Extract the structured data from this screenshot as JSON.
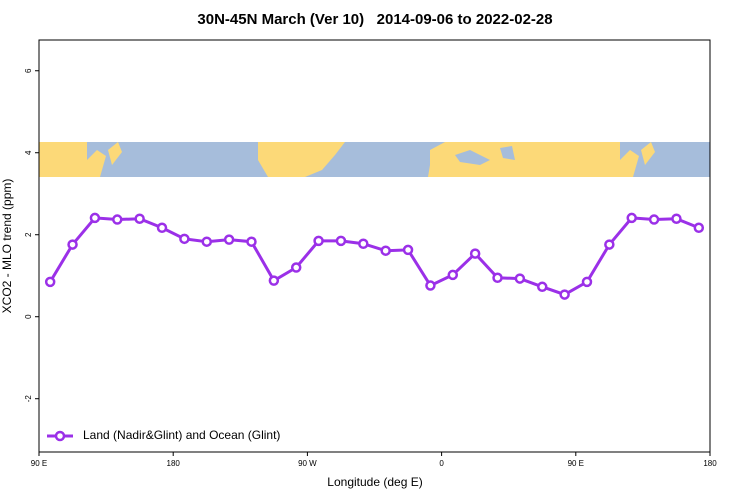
{
  "chart_data": {
    "type": "line",
    "title": "30N-45N March (Ver 10)   2014-09-06 to 2022-02-28",
    "xlabel": "Longitude (deg E)",
    "ylabel": "XCO2 - MLO trend (ppm)",
    "x": [
      97.5,
      112.5,
      127.5,
      142.5,
      157.5,
      172.5,
      187.5,
      202.5,
      217.5,
      232.5,
      247.5,
      262.5,
      277.5,
      292.5,
      307.5,
      322.5,
      337.5,
      352.5,
      367.5,
      382.5,
      397.5,
      412.5,
      427.5,
      442.5,
      457.5,
      472.5,
      487.5,
      502.5,
      517.5,
      532.5
    ],
    "series": [
      {
        "name": "Land (Nadir&Glint) and Ocean (Glint)",
        "color": "#9b30e8",
        "values": [
          0.85,
          1.76,
          2.41,
          2.37,
          2.39,
          2.17,
          1.9,
          1.83,
          1.88,
          1.83,
          0.88,
          1.2,
          1.85,
          1.85,
          1.78,
          1.61,
          1.63,
          0.76,
          1.02,
          1.54,
          0.95,
          0.93,
          0.73,
          0.54,
          0.85,
          1.76,
          2.41,
          2.37,
          2.39,
          2.17
        ]
      }
    ],
    "xlim": [
      90,
      540
    ],
    "xticks": [
      {
        "value": 90,
        "label": "90 E"
      },
      {
        "value": 180,
        "label": "180"
      },
      {
        "value": 270,
        "label": "90 W"
      },
      {
        "value": 360,
        "label": "0"
      },
      {
        "value": 450,
        "label": "90 E"
      },
      {
        "value": 540,
        "label": "180"
      }
    ],
    "ylim": [
      -3.3,
      6.75
    ],
    "yticks": [
      -2,
      0,
      2,
      4,
      6
    ],
    "legend": "bottom-left"
  }
}
